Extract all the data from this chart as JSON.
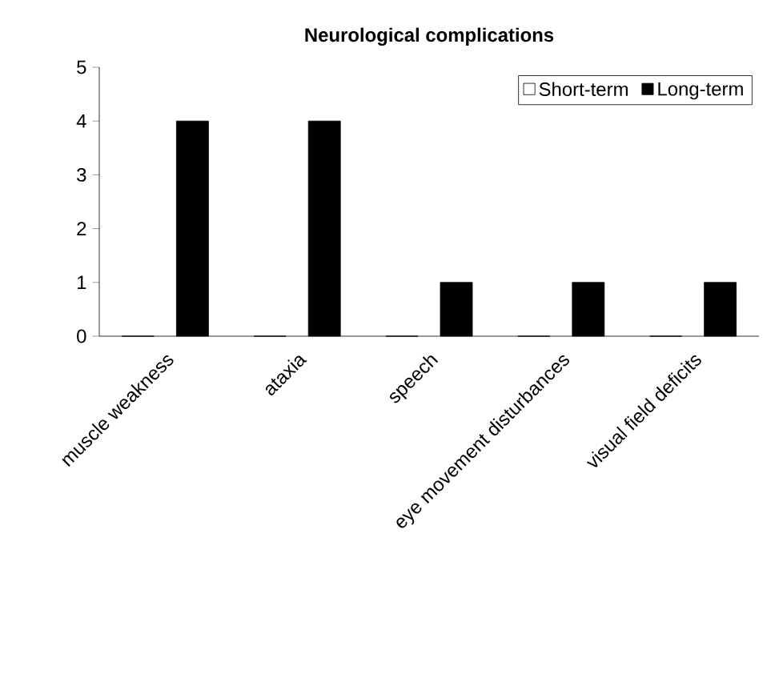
{
  "chart_data": {
    "type": "bar",
    "title": "Neurological complications",
    "categories": [
      "muscle weakness",
      "ataxia",
      "speech",
      "eye movement disturbances",
      "visual field deficits"
    ],
    "series": [
      {
        "name": "Short-term",
        "color": "#ffffff",
        "values": [
          0,
          0,
          0,
          0,
          0
        ]
      },
      {
        "name": "Long-term",
        "color": "#000000",
        "values": [
          4,
          4,
          1,
          1,
          1
        ]
      }
    ],
    "ylim": [
      0,
      5
    ],
    "yticks": [
      0,
      1,
      2,
      3,
      4,
      5
    ],
    "grid": false,
    "legend": "top right"
  }
}
